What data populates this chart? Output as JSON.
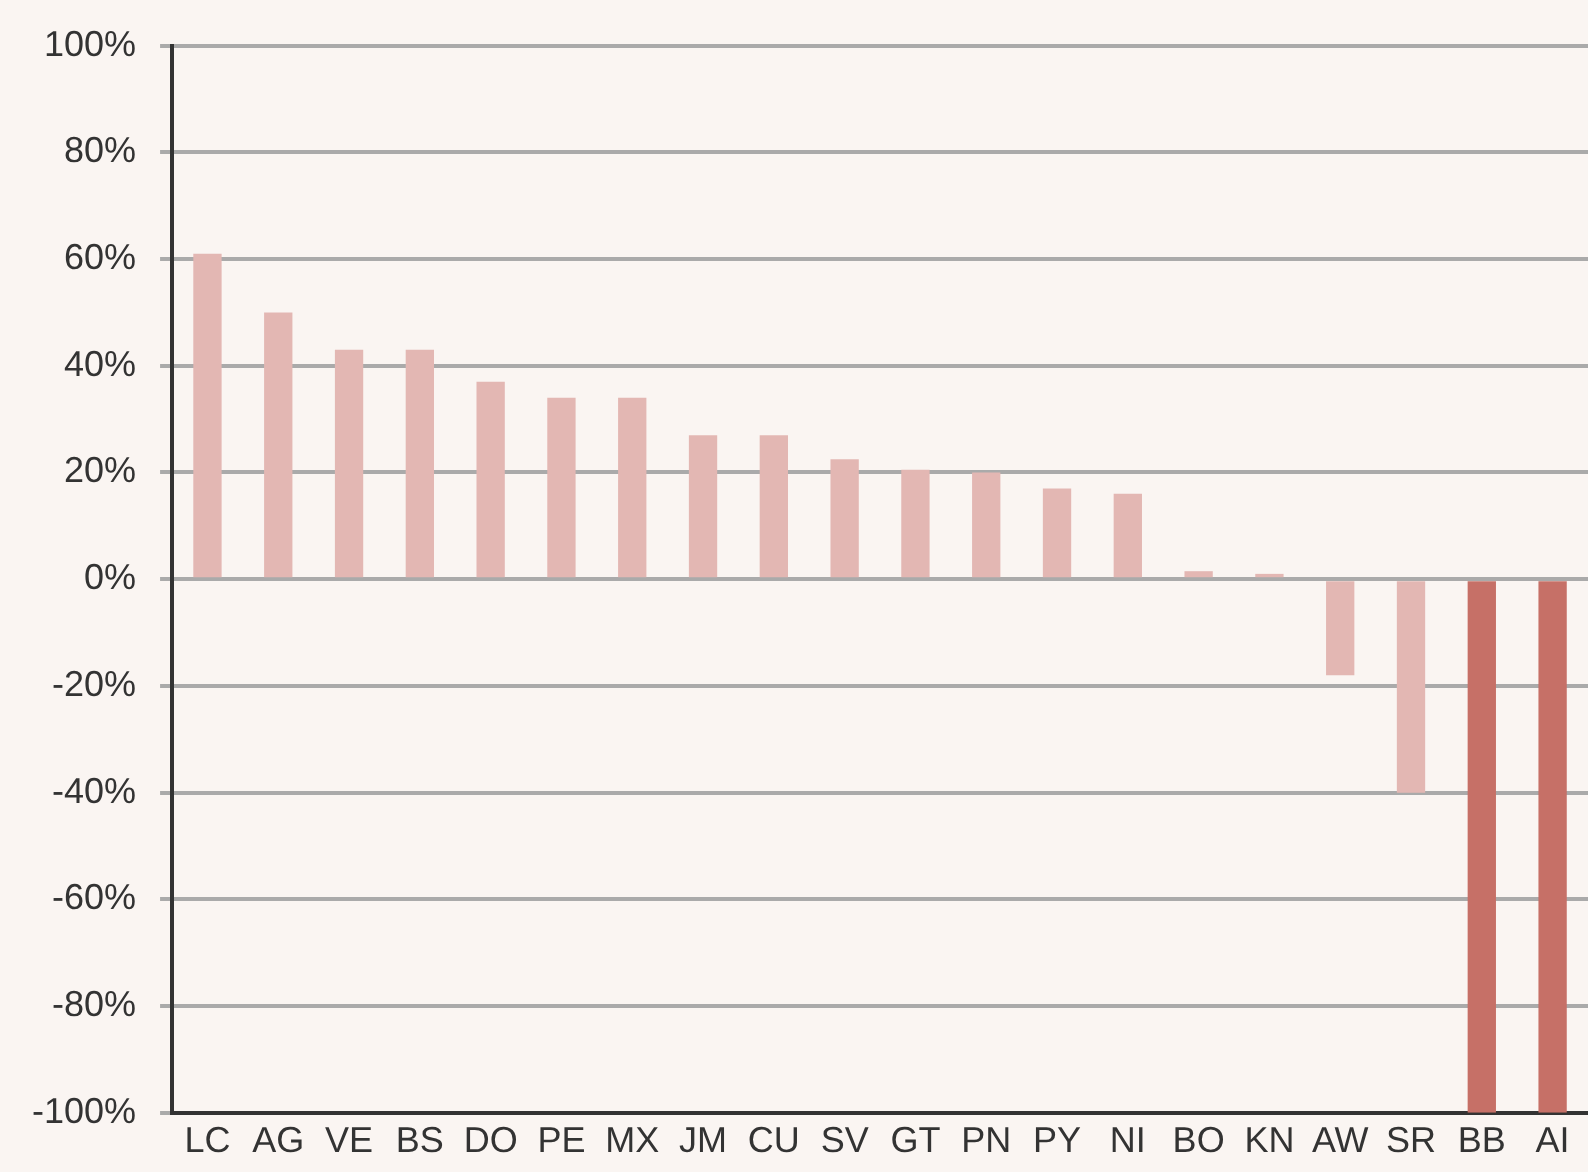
{
  "chart_data": {
    "type": "bar",
    "categories": [
      "LC",
      "AG",
      "VE",
      "BS",
      "DO",
      "PE",
      "MX",
      "JM",
      "CU",
      "SV",
      "GT",
      "PN",
      "PY",
      "NI",
      "BO",
      "KN",
      "AW",
      "SR",
      "BB",
      "AI"
    ],
    "values": [
      61,
      50,
      43,
      43,
      37,
      34,
      34,
      27,
      27,
      22.5,
      20.5,
      20,
      17,
      16,
      1.5,
      1,
      -18,
      -40,
      -100,
      -100
    ],
    "colors": [
      "#e3b7b3",
      "#e3b7b3",
      "#e3b7b3",
      "#e3b7b3",
      "#e3b7b3",
      "#e3b7b3",
      "#e3b7b3",
      "#e3b7b3",
      "#e3b7b3",
      "#e3b7b3",
      "#e3b7b3",
      "#e3b7b3",
      "#e3b7b3",
      "#e3b7b3",
      "#e3b7b3",
      "#e3b7b3",
      "#e3b7b3",
      "#e3b7b3",
      "#c67067",
      "#c67067"
    ],
    "ylim": [
      -100,
      100
    ],
    "yticks": [
      {
        "value": -100,
        "label": "-100%"
      },
      {
        "value": -80,
        "label": "-80%"
      },
      {
        "value": -60,
        "label": "-60%"
      },
      {
        "value": -40,
        "label": "-40%"
      },
      {
        "value": -20,
        "label": "-20%"
      },
      {
        "value": 0,
        "label": "0%"
      },
      {
        "value": 20,
        "label": "20%"
      },
      {
        "value": 40,
        "label": "40%"
      },
      {
        "value": 60,
        "label": "60%"
      },
      {
        "value": 80,
        "label": "80%"
      },
      {
        "value": 100,
        "label": "100%"
      }
    ],
    "grid": "y",
    "legend": false
  }
}
